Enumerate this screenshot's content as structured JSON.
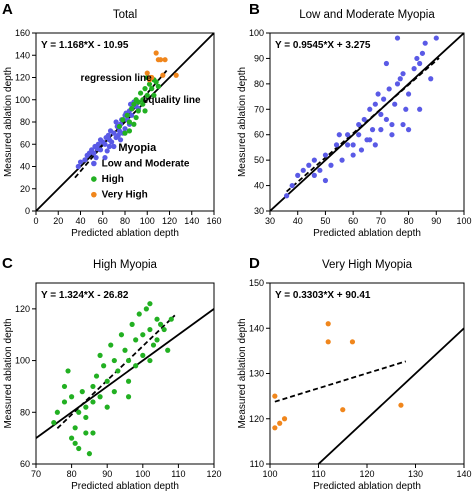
{
  "colors": {
    "low_moderate": "#5a5ae6",
    "high": "#22b022",
    "very_high": "#f0861c"
  },
  "legend": {
    "title": "Myopia",
    "items": [
      {
        "label": "Low and Moderate",
        "color": "#5a5ae6"
      },
      {
        "label": "High",
        "color": "#22b022"
      },
      {
        "label": "Very High",
        "color": "#f0861c"
      }
    ]
  },
  "chart_data": [
    {
      "type": "scatter",
      "letter": "A",
      "title": "Total",
      "xlabel": "Predicted ablation depth",
      "ylabel": "Measured ablation depth",
      "xlim": [
        0,
        160
      ],
      "ylim": [
        0,
        160
      ],
      "xticks": [
        0,
        20,
        40,
        60,
        80,
        100,
        120,
        140,
        160
      ],
      "yticks": [
        0,
        20,
        40,
        60,
        80,
        100,
        120,
        140,
        160
      ],
      "equation": "Y = 1.168*X - 10.95",
      "regression": {
        "slope": 1.168,
        "intercept": -10.95,
        "x_range": [
          35,
          118
        ]
      },
      "equality_line": {
        "x_range": [
          0,
          160
        ]
      },
      "annotations": {
        "regression": "regression line",
        "equality": "equality line"
      },
      "series": [
        {
          "name": "Low and Moderate",
          "color": "#5a5ae6",
          "points": [
            [
              38,
              40
            ],
            [
              40,
              44
            ],
            [
              44,
              46
            ],
            [
              46,
              50
            ],
            [
              48,
              52
            ],
            [
              50,
              55
            ],
            [
              52,
              52
            ],
            [
              53,
              58
            ],
            [
              54,
              48
            ],
            [
              55,
              56
            ],
            [
              56,
              60
            ],
            [
              58,
              55
            ],
            [
              60,
              62
            ],
            [
              62,
              60
            ],
            [
              63,
              66
            ],
            [
              64,
              54
            ],
            [
              65,
              68
            ],
            [
              66,
              64
            ],
            [
              67,
              72
            ],
            [
              68,
              62
            ],
            [
              70,
              70
            ],
            [
              72,
              66
            ],
            [
              73,
              76
            ],
            [
              74,
              68
            ],
            [
              75,
              72
            ],
            [
              76,
              78
            ],
            [
              77,
              82
            ],
            [
              78,
              70
            ],
            [
              80,
              74
            ],
            [
              81,
              88
            ],
            [
              82,
              82
            ],
            [
              84,
              90
            ],
            [
              85,
              96
            ],
            [
              86,
              86
            ],
            [
              88,
              98
            ],
            [
              90,
              94
            ],
            [
              92,
              92
            ],
            [
              62,
              48
            ],
            [
              58,
              64
            ],
            [
              70,
              58
            ],
            [
              72,
              80
            ],
            [
              66,
              58
            ],
            [
              76,
              64
            ],
            [
              80,
              86
            ],
            [
              84,
              78
            ]
          ]
        },
        {
          "name": "High",
          "color": "#22b022",
          "points": [
            [
              75,
              76
            ],
            [
              78,
              82
            ],
            [
              80,
              70
            ],
            [
              82,
              86
            ],
            [
              84,
              80
            ],
            [
              86,
              92
            ],
            [
              88,
              96
            ],
            [
              90,
              84
            ],
            [
              92,
              98
            ],
            [
              94,
              106
            ],
            [
              96,
              100
            ],
            [
              98,
              110
            ],
            [
              100,
              104
            ],
            [
              102,
              114
            ],
            [
              104,
              110
            ],
            [
              106,
              118
            ],
            [
              108,
              116
            ],
            [
              100,
              120
            ],
            [
              96,
              96
            ],
            [
              92,
              90
            ],
            [
              88,
              78
            ],
            [
              106,
              104
            ],
            [
              110,
              112
            ],
            [
              98,
              90
            ],
            [
              90,
              100
            ],
            [
              84,
              72
            ]
          ]
        },
        {
          "name": "Very High",
          "color": "#f0861c",
          "points": [
            [
              100,
              124
            ],
            [
              102,
              118
            ],
            [
              103,
              120
            ],
            [
              104,
              120
            ],
            [
              108,
              142
            ],
            [
              110,
              136
            ],
            [
              112,
              136
            ],
            [
              114,
              122
            ],
            [
              116,
              136
            ],
            [
              126,
              122
            ]
          ]
        }
      ]
    },
    {
      "type": "scatter",
      "letter": "B",
      "title": "Low and Moderate Myopia",
      "xlabel": "Predicted ablation depth",
      "ylabel": "Measured ablation depth",
      "xlim": [
        30,
        100
      ],
      "ylim": [
        30,
        100
      ],
      "xticks": [
        30,
        40,
        50,
        60,
        70,
        80,
        90,
        100
      ],
      "yticks": [
        30,
        40,
        50,
        60,
        70,
        80,
        90,
        100
      ],
      "equation": "Y = 0.9545*X + 3.275",
      "regression": {
        "slope": 0.9545,
        "intercept": 3.275,
        "x_range": [
          36,
          91
        ]
      },
      "equality_line": {
        "x_range": [
          30,
          100
        ]
      },
      "series": [
        {
          "name": "Low and Moderate",
          "color": "#5a5ae6",
          "points": [
            [
              36,
              36
            ],
            [
              38,
              40
            ],
            [
              40,
              44
            ],
            [
              42,
              46
            ],
            [
              44,
              48
            ],
            [
              46,
              50
            ],
            [
              48,
              46
            ],
            [
              50,
              52
            ],
            [
              52,
              48
            ],
            [
              54,
              56
            ],
            [
              55,
              60
            ],
            [
              56,
              50
            ],
            [
              58,
              60
            ],
            [
              60,
              56
            ],
            [
              62,
              64
            ],
            [
              63,
              54
            ],
            [
              64,
              66
            ],
            [
              65,
              58
            ],
            [
              66,
              70
            ],
            [
              67,
              62
            ],
            [
              68,
              72
            ],
            [
              69,
              76
            ],
            [
              70,
              68
            ],
            [
              71,
              74
            ],
            [
              72,
              66
            ],
            [
              73,
              78
            ],
            [
              74,
              64
            ],
            [
              75,
              72
            ],
            [
              76,
              80
            ],
            [
              77,
              82
            ],
            [
              78,
              84
            ],
            [
              79,
              70
            ],
            [
              80,
              76
            ],
            [
              82,
              86
            ],
            [
              83,
              90
            ],
            [
              84,
              88
            ],
            [
              85,
              92
            ],
            [
              86,
              96
            ],
            [
              88,
              82
            ],
            [
              90,
              98
            ],
            [
              76,
              98
            ],
            [
              72,
              88
            ],
            [
              66,
              58
            ],
            [
              62,
              60
            ],
            [
              58,
              56
            ],
            [
              46,
              44
            ],
            [
              50,
              42
            ],
            [
              60,
              52
            ],
            [
              70,
              62
            ],
            [
              80,
              62
            ],
            [
              84,
              70
            ],
            [
              78,
              64
            ],
            [
              74,
              60
            ],
            [
              68,
              56
            ]
          ]
        }
      ]
    },
    {
      "type": "scatter",
      "letter": "C",
      "title": "High Myopia",
      "xlabel": "Predicted ablation depth",
      "ylabel": "Measured ablation depth",
      "xlim": [
        70,
        120
      ],
      "ylim": [
        60,
        130
      ],
      "xticks": [
        70,
        80,
        90,
        100,
        110,
        120
      ],
      "yticks": [
        60,
        80,
        100,
        120
      ],
      "equation": "Y = 1.324*X - 26.82",
      "regression": {
        "slope": 1.324,
        "intercept": -26.82,
        "x_range": [
          76,
          109
        ]
      },
      "equality_line": {
        "x_range": [
          70,
          120
        ]
      },
      "series": [
        {
          "name": "High",
          "color": "#22b022",
          "points": [
            [
              75,
              76
            ],
            [
              76,
              80
            ],
            [
              78,
              84
            ],
            [
              78,
              90
            ],
            [
              79,
              96
            ],
            [
              80,
              86
            ],
            [
              80,
              70
            ],
            [
              81,
              74
            ],
            [
              81,
              68
            ],
            [
              82,
              80
            ],
            [
              82,
              66
            ],
            [
              83,
              88
            ],
            [
              84,
              82
            ],
            [
              84,
              72
            ],
            [
              85,
              64
            ],
            [
              86,
              90
            ],
            [
              86,
              84
            ],
            [
              87,
              94
            ],
            [
              88,
              102
            ],
            [
              88,
              86
            ],
            [
              89,
              98
            ],
            [
              90,
              82
            ],
            [
              90,
              92
            ],
            [
              91,
              106
            ],
            [
              92,
              100
            ],
            [
              92,
              88
            ],
            [
              93,
              96
            ],
            [
              94,
              110
            ],
            [
              95,
              104
            ],
            [
              96,
              100
            ],
            [
              96,
              92
            ],
            [
              97,
              114
            ],
            [
              98,
              108
            ],
            [
              98,
              98
            ],
            [
              99,
              118
            ],
            [
              100,
              110
            ],
            [
              100,
              102
            ],
            [
              101,
              120
            ],
            [
              102,
              112
            ],
            [
              102,
              100
            ],
            [
              103,
              106
            ],
            [
              104,
              116
            ],
            [
              104,
              108
            ],
            [
              105,
              114
            ],
            [
              106,
              112
            ],
            [
              107,
              104
            ],
            [
              108,
              116
            ],
            [
              102,
              122
            ],
            [
              86,
              72
            ],
            [
              84,
              78
            ],
            [
              96,
              86
            ]
          ]
        }
      ]
    },
    {
      "type": "scatter",
      "letter": "D",
      "title": "Very High Myopia",
      "xlabel": "Predicted ablation depth",
      "ylabel": "Measured ablation depth",
      "xlim": [
        100,
        140
      ],
      "ylim": [
        110,
        150
      ],
      "xticks": [
        100,
        110,
        120,
        130,
        140
      ],
      "yticks": [
        110,
        120,
        130,
        140,
        150
      ],
      "equation": "Y = 0.3303*X + 90.41",
      "regression": {
        "slope": 0.3303,
        "intercept": 90.41,
        "x_range": [
          101,
          128
        ]
      },
      "equality_line": {
        "x_range": [
          100,
          140
        ]
      },
      "series": [
        {
          "name": "Very High",
          "color": "#f0861c",
          "points": [
            [
              101,
              125
            ],
            [
              101,
              118
            ],
            [
              102,
              119
            ],
            [
              103,
              120
            ],
            [
              112,
              141
            ],
            [
              112,
              137
            ],
            [
              115,
              122
            ],
            [
              117,
              137
            ],
            [
              127,
              123
            ]
          ]
        }
      ]
    }
  ]
}
